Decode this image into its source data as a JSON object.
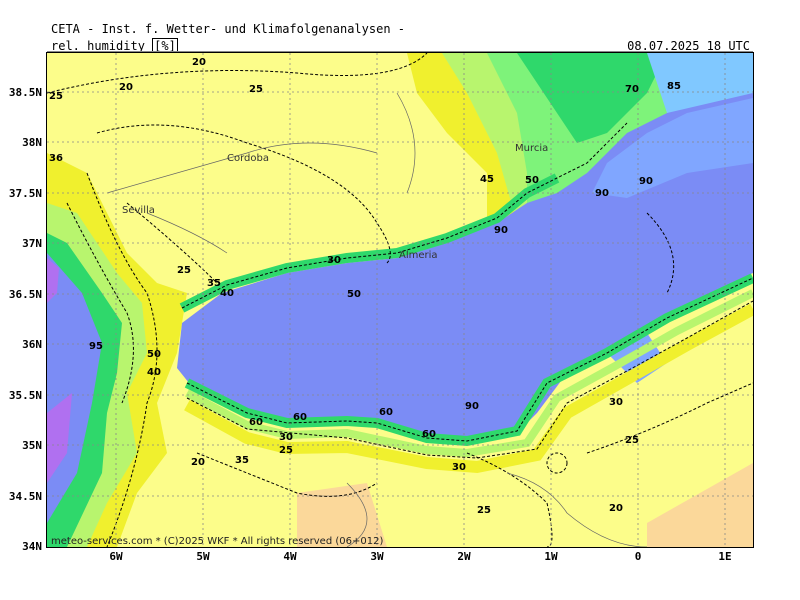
{
  "header": {
    "title": "CETA - Inst. f. Wetter- und Klimafolgenanalysen -",
    "variable": "rel. humidity",
    "unit": "[%]",
    "valid_time": "08.07.2025 18 UTC"
  },
  "footer": {
    "credit": "meteo-services.com * (C)2025 WKF * All rights reserved (06+012)"
  },
  "axes": {
    "lat_labels": [
      "38.5N",
      "38N",
      "37.5N",
      "37N",
      "36.5N",
      "36N",
      "35.5N",
      "35N",
      "34.5N",
      "34N"
    ],
    "lon_labels": [
      "6W",
      "5W",
      "4W",
      "3W",
      "2W",
      "1W",
      "0",
      "1E"
    ]
  },
  "cities": [
    {
      "name": "Cordoba"
    },
    {
      "name": "Sevilla"
    },
    {
      "name": "Murcia"
    },
    {
      "name": "Almeria"
    }
  ],
  "contour_labels": [
    "20",
    "25",
    "25",
    "36",
    "20",
    "25",
    "35",
    "40",
    "45",
    "50",
    "90",
    "90",
    "85",
    "70",
    "95",
    "90",
    "30",
    "25",
    "35",
    "30",
    "20",
    "25",
    "30",
    "60",
    "60",
    "60",
    "90",
    "60",
    "50",
    "40",
    "50",
    "20",
    "30",
    "25",
    "20"
  ],
  "colors": {
    "sea": "#7b8cf5",
    "sea_light": "#80a6ff",
    "land_dry": "#fcfd8a",
    "land_yellow": "#f0f02e",
    "green_mid": "#7ef37a",
    "green_dark": "#2fd86b",
    "cyan": "#80c8ff",
    "purple": "#b070f0",
    "orange": "#fbd89a"
  }
}
